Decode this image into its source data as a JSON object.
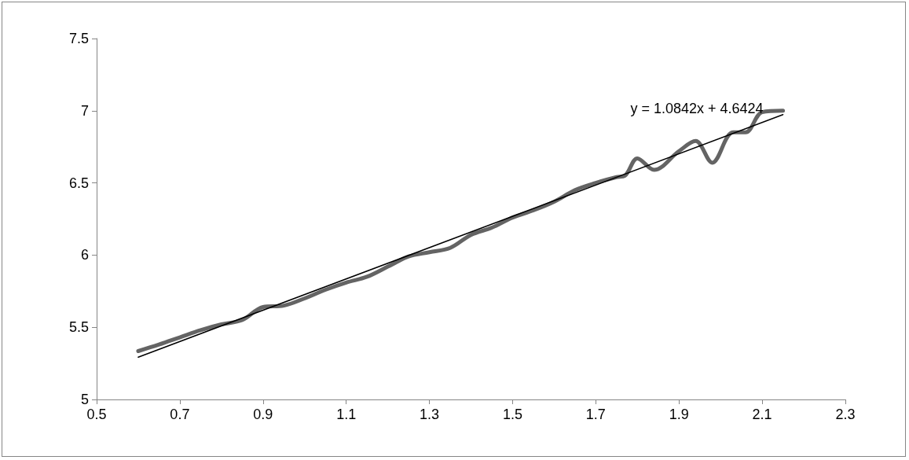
{
  "chart_data": {
    "type": "line",
    "series": [
      {
        "color": "#646464",
        "x": [
          0.6,
          0.65,
          0.7,
          0.75,
          0.8,
          0.85,
          0.9,
          0.95,
          1.0,
          1.05,
          1.1,
          1.15,
          1.2,
          1.25,
          1.3,
          1.35,
          1.4,
          1.45,
          1.5,
          1.55,
          1.6,
          1.65,
          1.7,
          1.75,
          1.77,
          1.8,
          1.84,
          1.9,
          1.94,
          1.98,
          2.03,
          2.06,
          2.1,
          2.15
        ],
        "values": [
          5.335,
          5.38,
          5.43,
          5.48,
          5.52,
          5.55,
          5.64,
          5.65,
          5.7,
          5.76,
          5.81,
          5.85,
          5.92,
          5.99,
          6.02,
          6.05,
          6.14,
          6.19,
          6.26,
          6.31,
          6.37,
          6.45,
          6.5,
          6.54,
          6.55,
          6.67,
          6.59,
          6.72,
          6.79,
          6.64,
          6.85,
          6.85,
          6.99,
          7.0
        ]
      },
      {
        "type": "line",
        "color": "#000000",
        "x": [
          0.6,
          2.15
        ],
        "values": [
          5.293,
          6.973
        ]
      }
    ],
    "annotations": [
      "y = 1.0842x + 4.6424"
    ],
    "xlim": [
      0.5,
      2.3
    ],
    "xticks": [
      0.5,
      0.7,
      0.9,
      1.1,
      1.3,
      1.5,
      1.7,
      1.9,
      2.1,
      2.3
    ],
    "ylim": [
      5,
      7.5
    ],
    "yticks": [
      5,
      5.5,
      6,
      6.5,
      7,
      7.5
    ],
    "grid": false,
    "marker": "none",
    "line_style": "solid"
  }
}
